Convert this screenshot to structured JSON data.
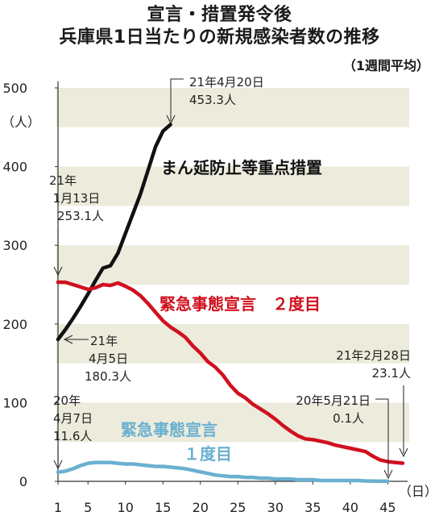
{
  "title": "宣言・措置発令後",
  "title_line2": "兵庫県1日当たりの新規感染者数の推移",
  "subtitle": "（1週間平均）",
  "chart_data": {
    "type": "line",
    "ylabel": "（人）",
    "xlabel": "（日）",
    "ylim": [
      0,
      500
    ],
    "xlim": [
      1,
      47
    ],
    "yticks": [
      "0",
      "100",
      "200",
      "300",
      "400",
      "500"
    ],
    "xticks": [
      "1",
      "5",
      "10",
      "15",
      "20",
      "25",
      "30",
      "35",
      "40",
      "45"
    ],
    "series": [
      {
        "name": "まん延防止等重点措置",
        "color": "#111111",
        "x": [
          1,
          2,
          3,
          4,
          5,
          6,
          7,
          8,
          9,
          10,
          11,
          12,
          13,
          14,
          15,
          16
        ],
        "values": [
          180.3,
          193,
          207,
          222,
          238,
          255,
          271,
          274,
          290,
          315,
          340,
          365,
          395,
          425,
          445,
          453.3
        ]
      },
      {
        "name": "緊急事態宣言 ２度目",
        "color": "#d0101e",
        "x": [
          1,
          2,
          3,
          4,
          5,
          6,
          7,
          8,
          9,
          10,
          11,
          12,
          13,
          14,
          15,
          16,
          17,
          18,
          19,
          20,
          21,
          22,
          23,
          24,
          25,
          26,
          27,
          28,
          29,
          30,
          31,
          32,
          33,
          34,
          35,
          36,
          37,
          38,
          39,
          40,
          41,
          42,
          43,
          44,
          45,
          46,
          47
        ],
        "values": [
          253.1,
          253,
          250,
          247,
          244,
          246,
          250,
          249,
          252,
          248,
          243,
          236,
          226,
          215,
          204,
          196,
          190,
          183,
          172,
          163,
          152,
          145,
          135,
          122,
          112,
          106,
          98,
          92,
          86,
          79,
          71,
          64,
          58,
          54,
          53,
          51,
          49,
          46,
          44,
          42,
          40,
          38,
          32,
          27,
          25,
          24,
          23.1
        ]
      },
      {
        "name": "緊急事態宣言 １度目",
        "color": "#6ab0d0",
        "x": [
          1,
          2,
          3,
          4,
          5,
          6,
          7,
          8,
          9,
          10,
          11,
          12,
          13,
          14,
          15,
          16,
          17,
          18,
          19,
          20,
          21,
          22,
          23,
          24,
          25,
          26,
          27,
          28,
          29,
          30,
          31,
          32,
          33,
          34,
          35,
          36,
          37,
          38,
          39,
          40,
          41,
          42,
          43,
          44,
          45
        ],
        "values": [
          11.6,
          13,
          16,
          20,
          23,
          24,
          24,
          24,
          23,
          22,
          22,
          21,
          20,
          19,
          19,
          18,
          17,
          16,
          14,
          12,
          10,
          8,
          7,
          6,
          6,
          5,
          5,
          4,
          4,
          3,
          3,
          3,
          2,
          2,
          2,
          1,
          1,
          1,
          1,
          1,
          1,
          0.5,
          0.3,
          0.1,
          0.1
        ]
      }
    ],
    "annotations": [
      {
        "line1": "21年4月20日",
        "line2": "453.3人"
      },
      {
        "line1": "21年",
        "line2": "1月13日",
        "line3": "253.1人"
      },
      {
        "line1": "21年",
        "line2": "4月5日",
        "line3": "180.3人"
      },
      {
        "line1": "21年2月28日",
        "line2": "23.1人"
      },
      {
        "line1": "20年5月21日",
        "line2": "0.1人"
      },
      {
        "line1": "20年",
        "line2": "4月7日",
        "line3": "11.6人"
      }
    ],
    "series_labels": {
      "black": "まん延防止等重点措置",
      "red": "緊急事態宣言　２度目",
      "blue_line1": "緊急事態宣言",
      "blue_line2": "１度目"
    }
  }
}
